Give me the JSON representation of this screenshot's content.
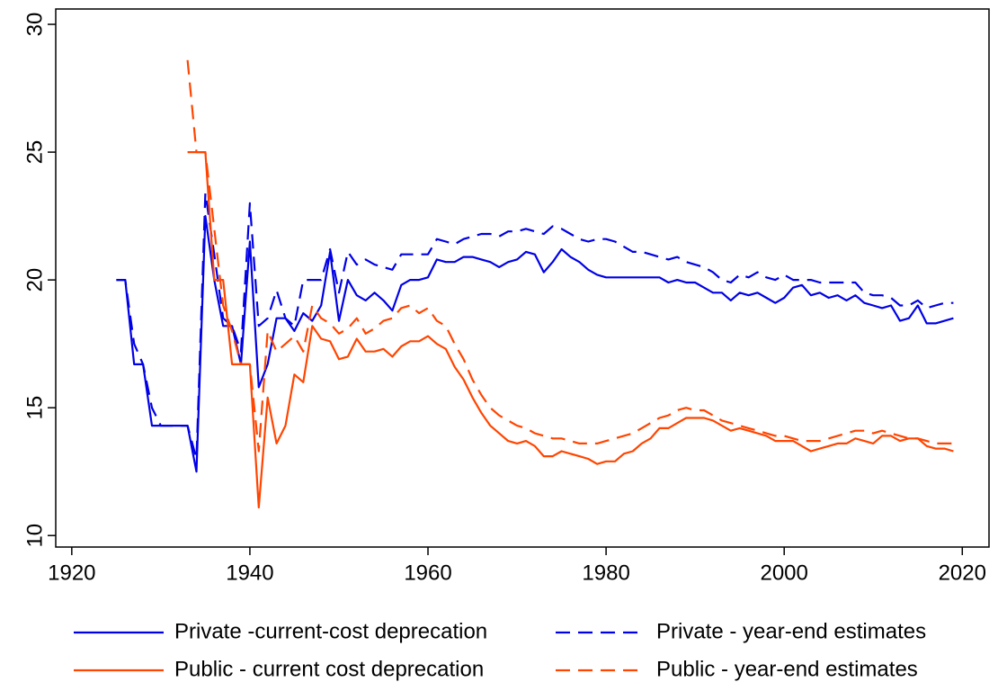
{
  "chart_data": {
    "type": "line",
    "x": [
      1925,
      1926,
      1927,
      1928,
      1929,
      1930,
      1931,
      1932,
      1933,
      1934,
      1935,
      1936,
      1937,
      1938,
      1939,
      1940,
      1941,
      1942,
      1943,
      1944,
      1945,
      1946,
      1947,
      1948,
      1949,
      1950,
      1951,
      1952,
      1953,
      1954,
      1955,
      1956,
      1957,
      1958,
      1959,
      1960,
      1961,
      1962,
      1963,
      1964,
      1965,
      1966,
      1967,
      1968,
      1969,
      1970,
      1971,
      1972,
      1973,
      1974,
      1975,
      1976,
      1977,
      1978,
      1979,
      1980,
      1981,
      1982,
      1983,
      1984,
      1985,
      1986,
      1987,
      1988,
      1989,
      1990,
      1991,
      1992,
      1993,
      1994,
      1995,
      1996,
      1997,
      1998,
      1999,
      2000,
      2001,
      2002,
      2003,
      2004,
      2005,
      2006,
      2007,
      2008,
      2009,
      2010,
      2011,
      2012,
      2013,
      2014,
      2015,
      2016,
      2017,
      2018,
      2019
    ],
    "series": [
      {
        "name": "Private -current-cost deprecation",
        "color": "#0000e6",
        "line_style": "solid",
        "values": [
          20,
          20,
          16.7,
          16.7,
          14.3,
          14.3,
          14.3,
          14.3,
          14.3,
          12.5,
          22.5,
          20,
          18.2,
          18.2,
          16.7,
          21.5,
          15.8,
          16.7,
          18.5,
          18.5,
          18,
          18.7,
          18.4,
          19,
          21.1,
          18.4,
          20,
          19.4,
          19.2,
          19.5,
          19.2,
          18.8,
          19.8,
          20,
          20,
          20.1,
          20.8,
          20.7,
          20.7,
          20.9,
          20.9,
          20.8,
          20.7,
          20.5,
          20.7,
          20.8,
          21.1,
          21,
          20.3,
          20.7,
          21.2,
          20.9,
          20.7,
          20.4,
          20.2,
          20.1,
          20.1,
          20.1,
          20.1,
          20.1,
          20.1,
          20.1,
          19.9,
          20,
          19.9,
          19.9,
          19.7,
          19.5,
          19.5,
          19.2,
          19.5,
          19.4,
          19.5,
          19.3,
          19.1,
          19.3,
          19.7,
          19.8,
          19.4,
          19.5,
          19.3,
          19.4,
          19.2,
          19.4,
          19.1,
          19,
          18.9,
          19,
          18.4,
          18.5,
          19,
          18.3,
          18.3,
          18.4,
          18.5
        ]
      },
      {
        "name": "Private - year-end estimates",
        "color": "#0000e6",
        "line_style": "dashed",
        "values": [
          20,
          20,
          17.5,
          16.7,
          15,
          14.3,
          14.3,
          14.3,
          14.3,
          13,
          23.4,
          21,
          18.5,
          18.2,
          17.2,
          23,
          18.2,
          18.5,
          19.6,
          18.5,
          18.2,
          20,
          20,
          20,
          21.2,
          19.5,
          21.1,
          20.6,
          20.8,
          20.6,
          20.5,
          20.4,
          21,
          21,
          21,
          21,
          21.6,
          21.5,
          21.4,
          21.6,
          21.7,
          21.8,
          21.8,
          21.7,
          21.9,
          21.9,
          22,
          21.9,
          21.8,
          22.1,
          22,
          21.8,
          21.6,
          21.5,
          21.6,
          21.6,
          21.5,
          21.3,
          21.1,
          21.1,
          21,
          20.9,
          20.8,
          20.9,
          20.7,
          20.6,
          20.5,
          20.3,
          20,
          19.9,
          20.2,
          20.1,
          20.3,
          20.1,
          20,
          20.2,
          20,
          20,
          20,
          19.9,
          19.9,
          19.9,
          19.9,
          19.9,
          19.5,
          19.4,
          19.4,
          19.3,
          19,
          19,
          19.2,
          18.9,
          19,
          19.1,
          19.1
        ]
      },
      {
        "name": "Public - current cost deprecation",
        "color": "#ff4500",
        "line_style": "solid",
        "values": [
          null,
          null,
          null,
          null,
          null,
          null,
          null,
          null,
          25,
          25,
          25,
          20,
          20,
          16.7,
          16.7,
          16.7,
          11.1,
          15.4,
          13.6,
          14.3,
          16.3,
          16,
          18.2,
          17.7,
          17.6,
          16.9,
          17,
          17.7,
          17.2,
          17.2,
          17.3,
          17,
          17.4,
          17.6,
          17.6,
          17.8,
          17.5,
          17.3,
          16.6,
          16.1,
          15.4,
          14.8,
          14.3,
          14,
          13.7,
          13.6,
          13.7,
          13.5,
          13.1,
          13.1,
          13.3,
          13.2,
          13.1,
          13,
          12.8,
          12.9,
          12.9,
          13.2,
          13.3,
          13.6,
          13.8,
          14.2,
          14.2,
          14.4,
          14.6,
          14.6,
          14.6,
          14.5,
          14.3,
          14.1,
          14.2,
          14.1,
          14,
          13.9,
          13.7,
          13.7,
          13.7,
          13.5,
          13.3,
          13.4,
          13.5,
          13.6,
          13.6,
          13.8,
          13.7,
          13.6,
          13.9,
          13.9,
          13.7,
          13.8,
          13.8,
          13.5,
          13.4,
          13.4,
          13.3
        ]
      },
      {
        "name": "Public - year-end estimates",
        "color": "#ff4500",
        "line_style": "dashed",
        "values": [
          null,
          null,
          null,
          null,
          null,
          null,
          null,
          null,
          28.6,
          25,
          25,
          22,
          19,
          18,
          16.7,
          16.7,
          13.3,
          18,
          17.2,
          17.5,
          17.8,
          17.2,
          19,
          18.5,
          18.3,
          17.9,
          18.1,
          18.5,
          17.9,
          18.1,
          18.4,
          18.5,
          18.9,
          19,
          18.7,
          18.9,
          18.4,
          18.2,
          17.5,
          16.9,
          16.1,
          15.5,
          15,
          14.7,
          14.5,
          14.3,
          14.2,
          14,
          13.9,
          13.8,
          13.8,
          13.7,
          13.6,
          13.6,
          13.6,
          13.7,
          13.8,
          13.9,
          14,
          14.2,
          14.4,
          14.6,
          14.7,
          14.9,
          15,
          14.9,
          14.9,
          14.7,
          14.5,
          14.4,
          14.3,
          14.2,
          14.1,
          14,
          13.9,
          13.9,
          13.8,
          13.7,
          13.7,
          13.7,
          13.8,
          13.9,
          14,
          14.1,
          14.1,
          14,
          14.1,
          14,
          13.9,
          13.8,
          13.8,
          13.7,
          13.6,
          13.6,
          13.6
        ]
      }
    ],
    "xlim": [
      1918.2,
      2023
    ],
    "xticks": [
      1920,
      1940,
      1960,
      1980,
      2000,
      2020
    ],
    "ylim": [
      9.55,
      30.6
    ],
    "yticks": [
      10,
      15,
      20,
      25,
      30
    ],
    "grid": false,
    "legend": "bottom"
  }
}
